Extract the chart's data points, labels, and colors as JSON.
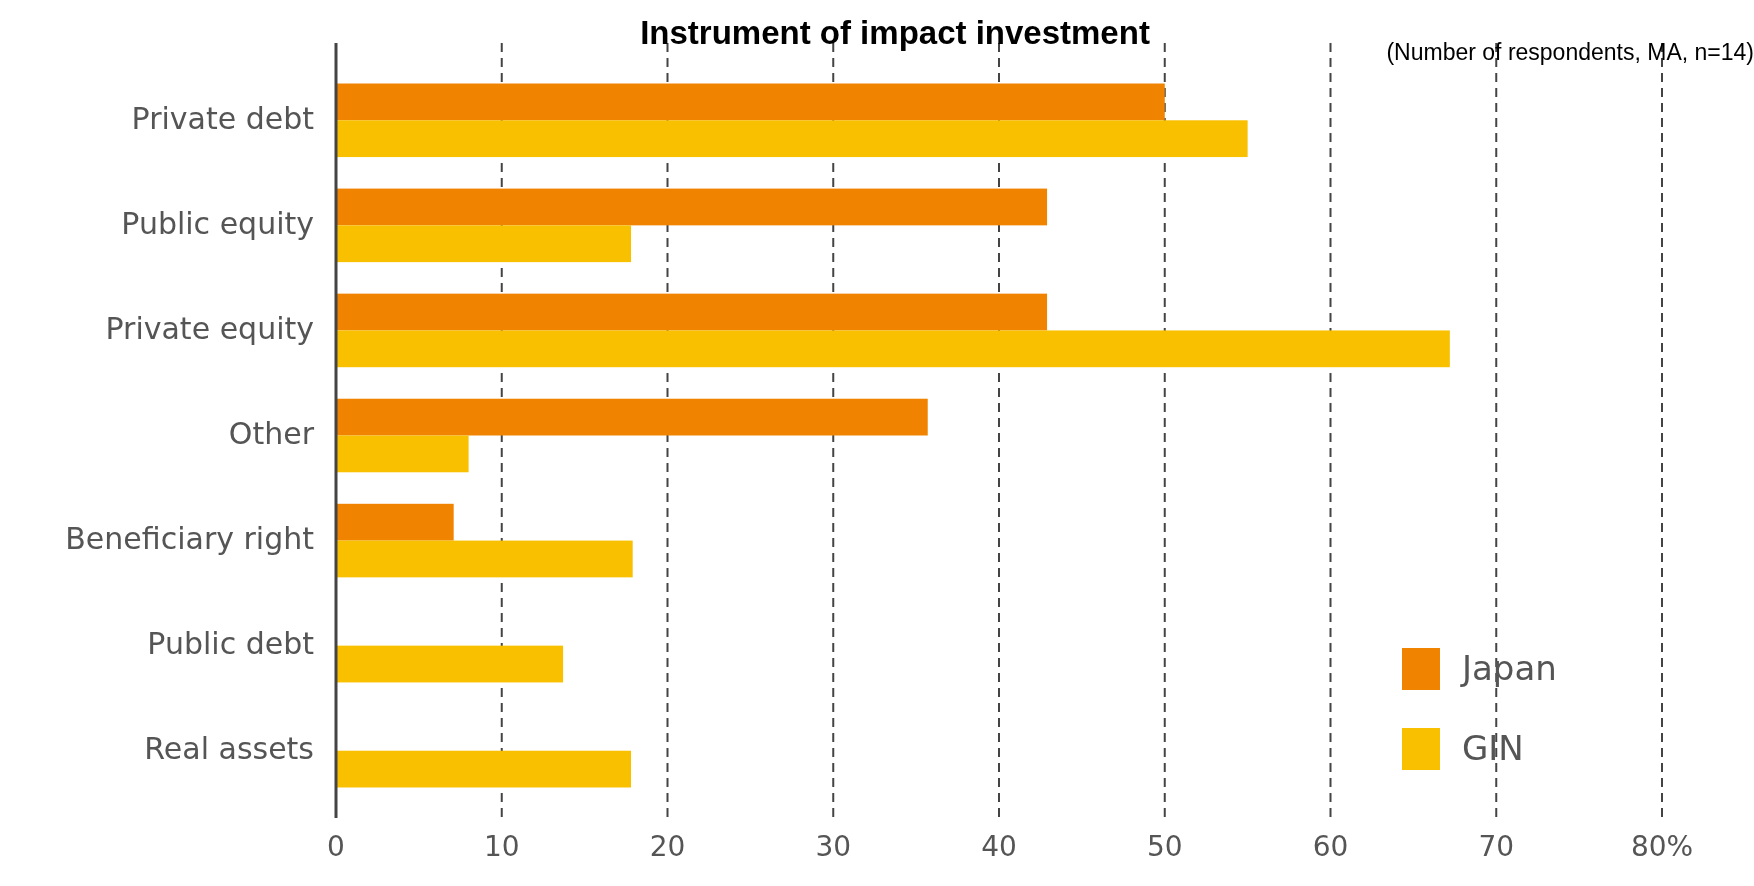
{
  "chart_data": {
    "type": "bar",
    "orientation": "horizontal",
    "title": "Instrument of impact investment",
    "annotations": [
      "(Number of respondents, MA, n=14)"
    ],
    "categories": [
      "Private debt",
      "Public equity",
      "Private equity",
      "Other",
      "Beneficiary right",
      "Public debt",
      "Real assets"
    ],
    "series": [
      {
        "name": "Japan",
        "color": "#f08300",
        "values": [
          50.0,
          42.9,
          42.9,
          35.7,
          7.1,
          0,
          0
        ]
      },
      {
        "name": "GIN",
        "color": "#f9c000",
        "values": [
          55.0,
          17.8,
          67.2,
          8.0,
          17.9,
          13.7,
          17.8
        ]
      }
    ],
    "xlim": [
      0,
      80
    ],
    "xticks": [
      0,
      10,
      20,
      30,
      40,
      50,
      60,
      70,
      {
        "value": 80,
        "label": "80%"
      }
    ],
    "grid": "x",
    "legend": "bottom right"
  }
}
